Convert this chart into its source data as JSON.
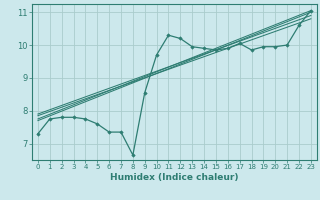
{
  "xlabel": "Humidex (Indice chaleur)",
  "ylabel": "",
  "xlim": [
    -0.5,
    23.5
  ],
  "ylim": [
    6.5,
    11.25
  ],
  "yticks": [
    7,
    8,
    9,
    10,
    11
  ],
  "xticks": [
    0,
    1,
    2,
    3,
    4,
    5,
    6,
    7,
    8,
    9,
    10,
    11,
    12,
    13,
    14,
    15,
    16,
    17,
    18,
    19,
    20,
    21,
    22,
    23
  ],
  "bg_color": "#cce8ec",
  "grid_color": "#aacccc",
  "line_color": "#2e7d72",
  "main_series_x": [
    0,
    1,
    2,
    3,
    4,
    5,
    6,
    7,
    8,
    9,
    10,
    11,
    12,
    13,
    14,
    15,
    16,
    17,
    18,
    19,
    20,
    21,
    22,
    23
  ],
  "main_series_y": [
    7.3,
    7.75,
    7.8,
    7.8,
    7.75,
    7.6,
    7.35,
    7.35,
    6.65,
    8.55,
    9.7,
    10.3,
    10.2,
    9.95,
    9.9,
    9.85,
    9.9,
    10.05,
    9.85,
    9.95,
    9.95,
    10.0,
    10.6,
    11.05
  ],
  "reg_lines": [
    {
      "x0": 0,
      "y0": 7.9,
      "x1": 23,
      "y1": 10.9
    },
    {
      "x0": 0,
      "y0": 7.85,
      "x1": 23,
      "y1": 10.8
    },
    {
      "x0": 0,
      "y0": 7.75,
      "x1": 23,
      "y1": 11.05
    },
    {
      "x0": 0,
      "y0": 7.7,
      "x1": 23,
      "y1": 11.0
    }
  ]
}
